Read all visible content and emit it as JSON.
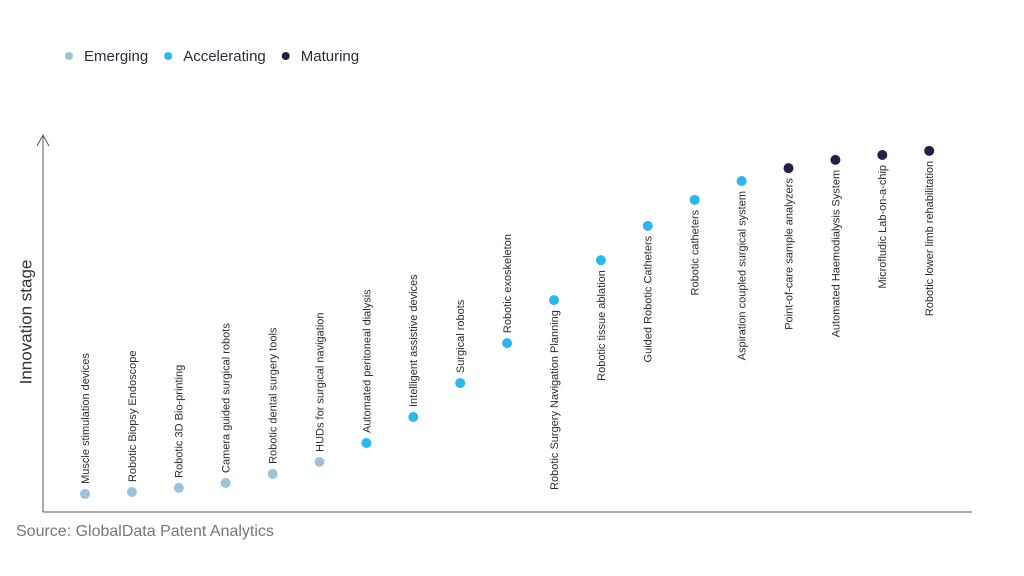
{
  "chart_data": {
    "type": "scatter",
    "y_label": "Innovation stage",
    "source": "Source: GlobalData Patent Analytics",
    "ylim": [
      0,
      100
    ],
    "categories": [
      "Muscle stimulation devices",
      "Robotic Biopsy Endoscope",
      "Robotic 3D Bio-printing",
      "Camera guided surgical robots",
      "Robotic dental surgery tools",
      "HUDs for surgical navigation",
      "Automated peritoneal dialysis",
      "Intelligent assistive devices",
      "Surgical robots",
      "Robotic exoskeleton",
      "Robotic Surgery Navigation Planning",
      "Robotic tissue ablation",
      "Guided Robotic Catheters",
      "Robotic catheters",
      "Aspiration coupled surgical system",
      "Point-of-care sample analyzers",
      "Automated Haemodialysis System",
      "Microfludic Lab-on-a-chip",
      "Robotic lower limb rehabilitation"
    ],
    "series": [
      {
        "name": "Emerging",
        "color": "#9dc3d8",
        "values": [
          4.8,
          5.3,
          6.4,
          7.7,
          10.1,
          13.3,
          null,
          null,
          null,
          null,
          null,
          null,
          null,
          null,
          null,
          null,
          null,
          null,
          null
        ]
      },
      {
        "name": "Accelerating",
        "color": "#2bb8ee",
        "values": [
          null,
          null,
          null,
          null,
          null,
          null,
          18.3,
          25.2,
          34.2,
          44.8,
          56.2,
          66.8,
          75.9,
          82.8,
          87.8,
          null,
          null,
          null,
          null
        ]
      },
      {
        "name": "Maturing",
        "color": "#2a1e47",
        "values": [
          null,
          null,
          null,
          null,
          null,
          null,
          null,
          null,
          null,
          null,
          null,
          null,
          null,
          null,
          null,
          91.2,
          93.4,
          94.7,
          95.8
        ]
      }
    ]
  }
}
